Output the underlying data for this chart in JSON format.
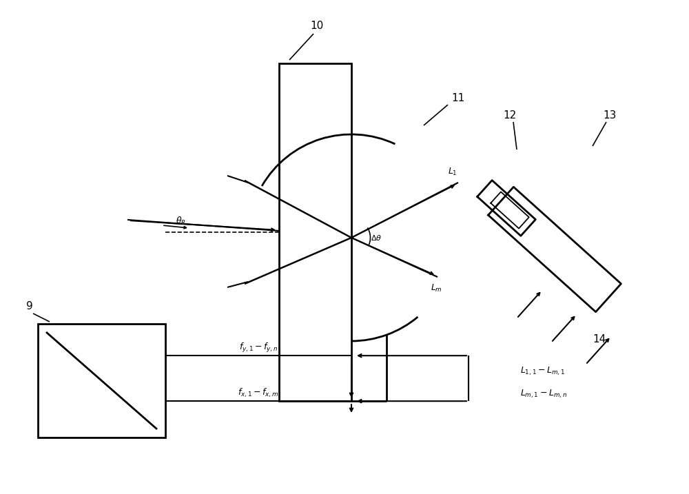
{
  "bg_color": "#ffffff",
  "lc": "#000000",
  "label10": "10",
  "label11": "11",
  "label12": "12",
  "label13": "13",
  "label14": "14",
  "label9": "9",
  "fig_w": 10.0,
  "fig_h": 7.17,
  "dpi": 100
}
